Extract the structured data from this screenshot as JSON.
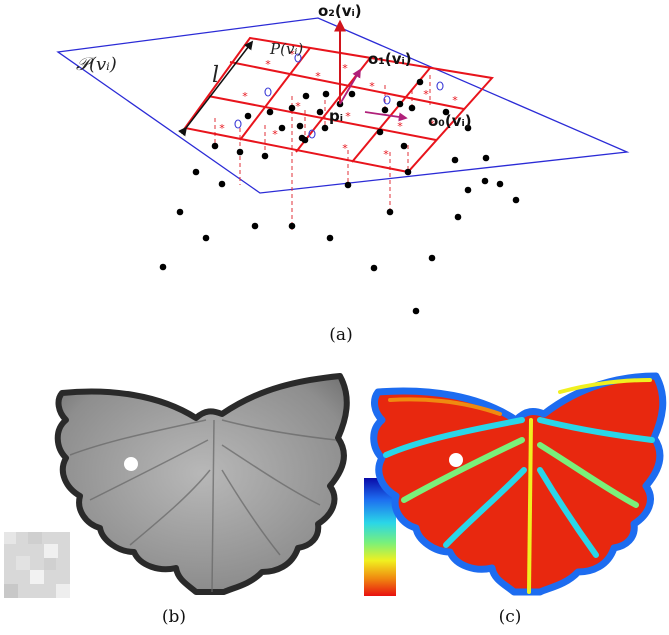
{
  "panel_a": {
    "caption": "(a)",
    "plane_label": "𝒫(vᵢ)",
    "patch_label": "P(vᵢ)",
    "length_label": "l",
    "point_label": "pᵢ",
    "axis_labels": [
      "o₂(vᵢ)",
      "o₁(vᵢ)",
      "o₀(vᵢ)"
    ],
    "colors": {
      "plane": "#2b2bd6",
      "grid": "#e8141c",
      "points": "#000000",
      "circles": "#3a3ad6",
      "axis": "#d1141c"
    }
  },
  "panel_b": {
    "caption": "(b)"
  },
  "panel_c": {
    "caption": "(c)",
    "colorbar_colors": [
      "#0a0aa8",
      "#1d6cf0",
      "#2ad6e8",
      "#7af07a",
      "#f0f020",
      "#f08a10",
      "#e81010"
    ]
  }
}
